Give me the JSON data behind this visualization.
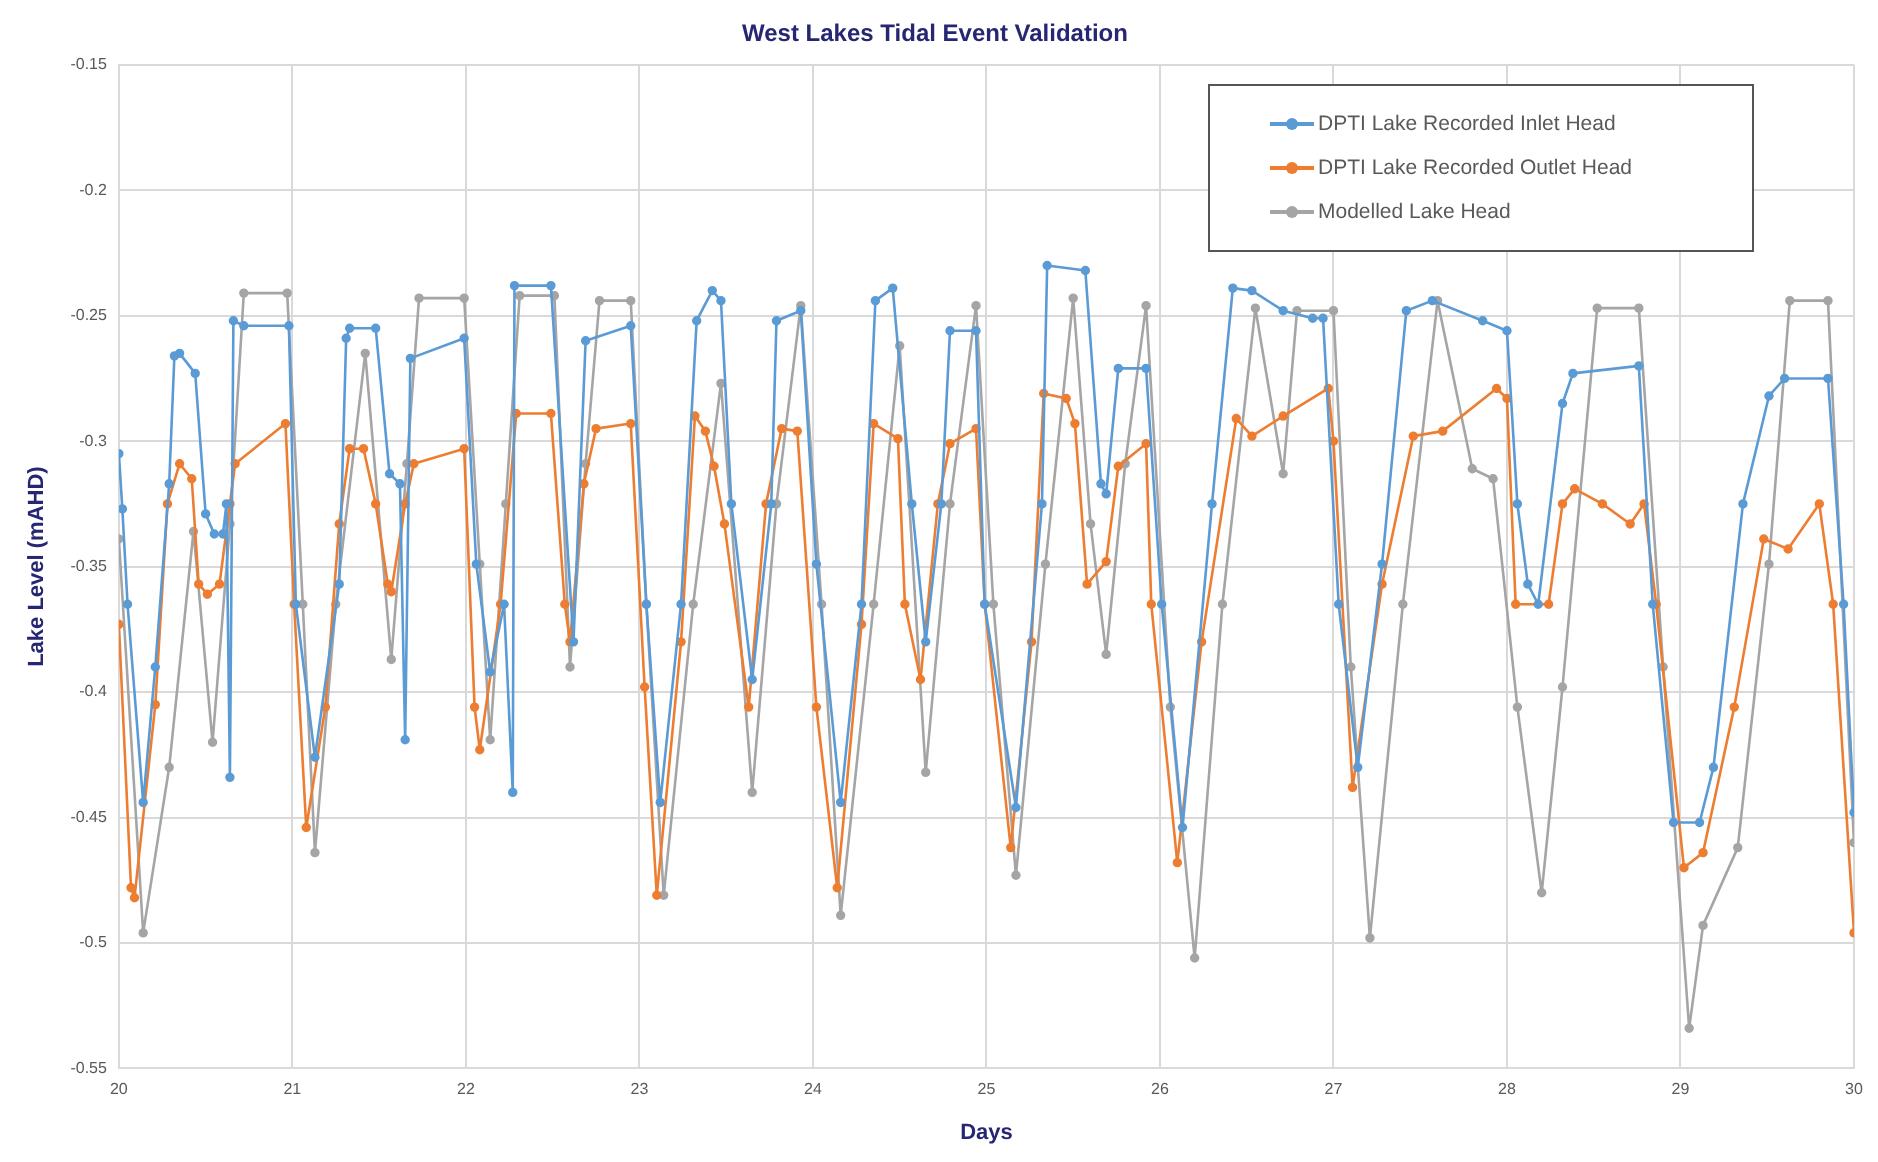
{
  "chart_data": {
    "type": "line",
    "title": "West Lakes Tidal Event Validation",
    "xlabel": "Days",
    "ylabel": "Lake Level (mAHD)",
    "xlim": [
      20,
      30
    ],
    "xticks": [
      20,
      21,
      22,
      23,
      24,
      25,
      26,
      27,
      28,
      29,
      30
    ],
    "ylim": [
      -0.55,
      -0.15
    ],
    "yticks": [
      -0.55,
      -0.5,
      -0.45,
      -0.4,
      -0.35,
      -0.3,
      -0.25,
      -0.2,
      -0.15
    ],
    "grid": true,
    "legend": "top right",
    "marker": "circle",
    "line_style": "solid",
    "series": [
      {
        "name": "DPTI Lake Recorded Inlet Head",
        "color": "#5b9bd5",
        "x": [
          20.0,
          20.02,
          20.05,
          20.14,
          20.21,
          20.29,
          20.32,
          20.35,
          20.44,
          20.5,
          20.55,
          20.6,
          20.62,
          20.64,
          20.66,
          20.72,
          20.98,
          21.02,
          21.13,
          21.27,
          21.31,
          21.33,
          21.48,
          21.56,
          21.62,
          21.65,
          21.68,
          21.99,
          22.06,
          22.14,
          22.22,
          22.27,
          22.28,
          22.49,
          22.62,
          22.69,
          22.95,
          23.04,
          23.12,
          23.24,
          23.33,
          23.42,
          23.47,
          23.53,
          23.65,
          23.76,
          23.79,
          23.93,
          24.02,
          24.16,
          24.28,
          24.36,
          24.46,
          24.57,
          24.65,
          24.74,
          24.79,
          24.94,
          24.99,
          25.17,
          25.32,
          25.35,
          25.57,
          25.66,
          25.69,
          25.76,
          25.92,
          26.01,
          26.13,
          26.3,
          26.42,
          26.53,
          26.71,
          26.88,
          26.94,
          27.03,
          27.14,
          27.28,
          27.42,
          27.57,
          27.86,
          28.0,
          28.06,
          28.12,
          28.18,
          28.32,
          28.38,
          28.76,
          28.84,
          28.96,
          29.11,
          29.19,
          29.36,
          29.51,
          29.6,
          29.85,
          29.94,
          30.0
        ],
        "values": [
          -0.305,
          -0.327,
          -0.365,
          -0.444,
          -0.39,
          -0.317,
          -0.266,
          -0.265,
          -0.273,
          -0.329,
          -0.337,
          -0.337,
          -0.325,
          -0.434,
          -0.252,
          -0.254,
          -0.254,
          -0.365,
          -0.426,
          -0.357,
          -0.259,
          -0.255,
          -0.255,
          -0.313,
          -0.317,
          -0.419,
          -0.267,
          -0.259,
          -0.349,
          -0.392,
          -0.365,
          -0.44,
          -0.238,
          -0.238,
          -0.38,
          -0.26,
          -0.254,
          -0.365,
          -0.444,
          -0.365,
          -0.252,
          -0.24,
          -0.244,
          -0.325,
          -0.395,
          -0.325,
          -0.252,
          -0.248,
          -0.349,
          -0.444,
          -0.365,
          -0.244,
          -0.239,
          -0.325,
          -0.38,
          -0.325,
          -0.256,
          -0.256,
          -0.365,
          -0.446,
          -0.325,
          -0.23,
          -0.232,
          -0.317,
          -0.321,
          -0.271,
          -0.271,
          -0.365,
          -0.454,
          -0.325,
          -0.239,
          -0.24,
          -0.248,
          -0.251,
          -0.251,
          -0.365,
          -0.43,
          -0.349,
          -0.248,
          -0.244,
          -0.252,
          -0.256,
          -0.325,
          -0.357,
          -0.365,
          -0.285,
          -0.273,
          -0.27,
          -0.365,
          -0.452,
          -0.452,
          -0.43,
          -0.325,
          -0.282,
          -0.275,
          -0.275,
          -0.365,
          -0.448
        ]
      },
      {
        "name": "DPTI Lake Recorded Outlet Head",
        "color": "#ed7d31",
        "x": [
          20.0,
          20.07,
          20.09,
          20.21,
          20.28,
          20.35,
          20.42,
          20.46,
          20.51,
          20.58,
          20.64,
          20.67,
          20.96,
          21.01,
          21.08,
          21.19,
          21.27,
          21.33,
          21.41,
          21.48,
          21.55,
          21.57,
          21.65,
          21.7,
          21.99,
          22.05,
          22.08,
          22.2,
          22.29,
          22.49,
          22.57,
          22.6,
          22.68,
          22.75,
          22.95,
          23.03,
          23.1,
          23.24,
          23.32,
          23.38,
          23.43,
          23.49,
          23.63,
          23.73,
          23.82,
          23.91,
          24.02,
          24.14,
          24.28,
          24.35,
          24.49,
          24.53,
          24.62,
          24.72,
          24.79,
          24.94,
          24.99,
          25.14,
          25.26,
          25.33,
          25.46,
          25.51,
          25.58,
          25.69,
          25.76,
          25.92,
          25.95,
          26.1,
          26.24,
          26.44,
          26.53,
          26.71,
          26.97,
          27.0,
          27.11,
          27.28,
          27.46,
          27.63,
          27.94,
          28.0,
          28.05,
          28.24,
          28.32,
          28.39,
          28.55,
          28.71,
          28.79,
          28.86,
          29.02,
          29.13,
          29.31,
          29.48,
          29.62,
          29.8,
          29.88,
          30.0
        ],
        "values": [
          -0.373,
          -0.478,
          -0.482,
          -0.405,
          -0.325,
          -0.309,
          -0.315,
          -0.357,
          -0.361,
          -0.357,
          -0.325,
          -0.309,
          -0.293,
          -0.365,
          -0.454,
          -0.406,
          -0.333,
          -0.303,
          -0.303,
          -0.325,
          -0.357,
          -0.36,
          -0.325,
          -0.309,
          -0.303,
          -0.406,
          -0.423,
          -0.365,
          -0.289,
          -0.289,
          -0.365,
          -0.38,
          -0.317,
          -0.295,
          -0.293,
          -0.398,
          -0.481,
          -0.38,
          -0.29,
          -0.296,
          -0.31,
          -0.333,
          -0.406,
          -0.325,
          -0.295,
          -0.296,
          -0.406,
          -0.478,
          -0.373,
          -0.293,
          -0.299,
          -0.365,
          -0.395,
          -0.325,
          -0.301,
          -0.295,
          -0.365,
          -0.462,
          -0.38,
          -0.281,
          -0.283,
          -0.293,
          -0.357,
          -0.348,
          -0.31,
          -0.301,
          -0.365,
          -0.468,
          -0.38,
          -0.291,
          -0.298,
          -0.29,
          -0.279,
          -0.3,
          -0.438,
          -0.357,
          -0.298,
          -0.296,
          -0.279,
          -0.283,
          -0.365,
          -0.365,
          -0.325,
          -0.319,
          -0.325,
          -0.333,
          -0.325,
          -0.365,
          -0.47,
          -0.464,
          -0.406,
          -0.339,
          -0.343,
          -0.325,
          -0.365,
          -0.496
        ]
      },
      {
        "name": "Modelled Lake Head",
        "color": "#a5a5a5",
        "x": [
          20.0,
          20.14,
          20.29,
          20.43,
          20.54,
          20.64,
          20.72,
          20.97,
          21.06,
          21.13,
          21.25,
          21.42,
          21.57,
          21.66,
          21.73,
          21.99,
          22.08,
          22.14,
          22.23,
          22.31,
          22.51,
          22.6,
          22.69,
          22.77,
          22.95,
          23.04,
          23.14,
          23.31,
          23.47,
          23.65,
          23.79,
          23.93,
          24.05,
          24.16,
          24.35,
          24.5,
          24.65,
          24.79,
          24.94,
          25.04,
          25.17,
          25.34,
          25.5,
          25.6,
          25.69,
          25.8,
          25.92,
          26.06,
          26.2,
          26.36,
          26.55,
          26.71,
          26.79,
          27.0,
          27.1,
          27.21,
          27.4,
          27.6,
          27.8,
          27.92,
          28.06,
          28.2,
          28.32,
          28.52,
          28.76,
          28.9,
          29.05,
          29.13,
          29.33,
          29.51,
          29.63,
          29.85,
          30.0
        ],
        "values": [
          -0.339,
          -0.496,
          -0.43,
          -0.336,
          -0.42,
          -0.333,
          -0.241,
          -0.241,
          -0.365,
          -0.464,
          -0.365,
          -0.265,
          -0.387,
          -0.309,
          -0.243,
          -0.243,
          -0.349,
          -0.419,
          -0.325,
          -0.242,
          -0.242,
          -0.39,
          -0.309,
          -0.244,
          -0.244,
          -0.365,
          -0.481,
          -0.365,
          -0.277,
          -0.44,
          -0.325,
          -0.246,
          -0.365,
          -0.489,
          -0.365,
          -0.262,
          -0.432,
          -0.325,
          -0.246,
          -0.365,
          -0.473,
          -0.349,
          -0.243,
          -0.333,
          -0.385,
          -0.309,
          -0.246,
          -0.406,
          -0.506,
          -0.365,
          -0.247,
          -0.313,
          -0.248,
          -0.248,
          -0.39,
          -0.498,
          -0.365,
          -0.244,
          -0.311,
          -0.315,
          -0.406,
          -0.48,
          -0.398,
          -0.247,
          -0.247,
          -0.39,
          -0.534,
          -0.493,
          -0.462,
          -0.349,
          -0.244,
          -0.244,
          -0.46
        ]
      }
    ]
  }
}
